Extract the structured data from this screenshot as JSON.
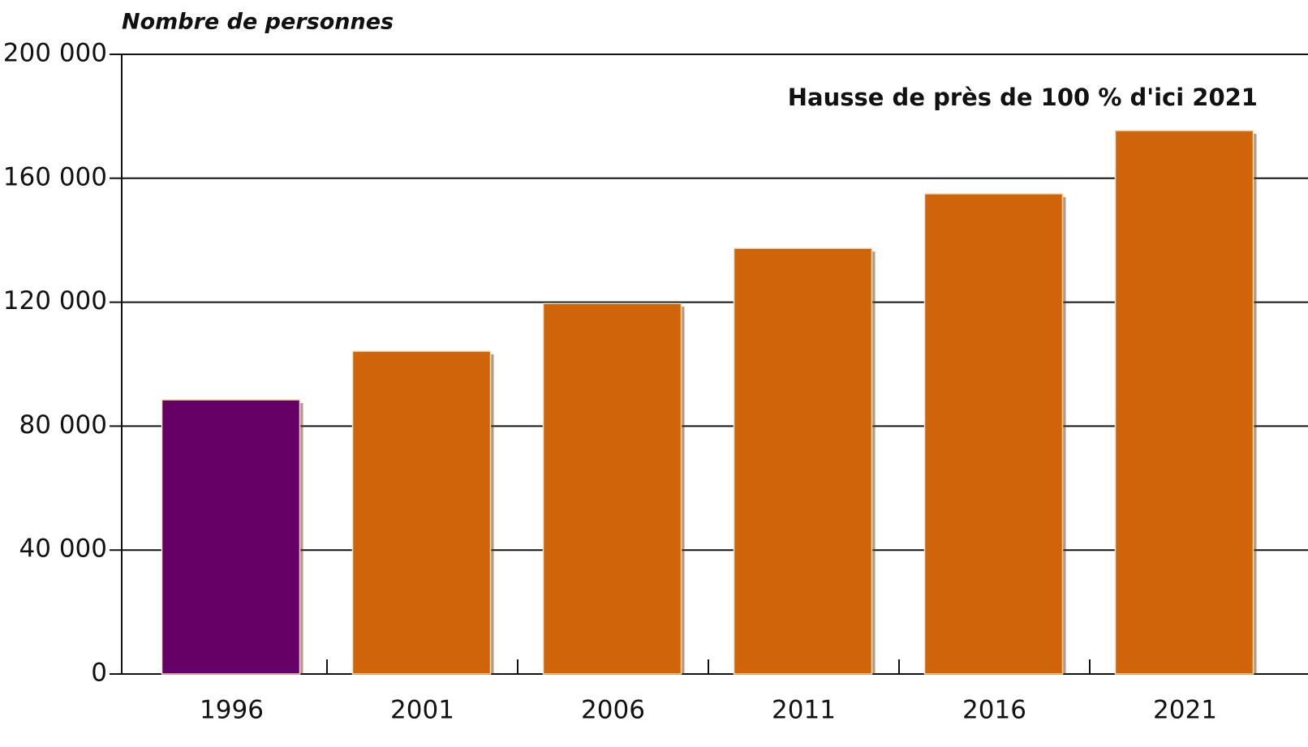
{
  "chart_data": {
    "type": "bar",
    "y_label": "Nombre de personnes",
    "annotation": "Hausse de près de 100 % d'ici 2021",
    "categories": [
      "1996",
      "2001",
      "2006",
      "2011",
      "2016",
      "2021"
    ],
    "values": [
      88500,
      104200,
      119600,
      137400,
      155000,
      175400
    ],
    "colors": [
      "#660066",
      "#d0640a",
      "#d0640a",
      "#d0640a",
      "#d0640a",
      "#d0640a"
    ],
    "ylim": [
      0,
      200000
    ],
    "yticks": [
      0,
      {
        "value": 40000,
        "label": "40 000"
      },
      {
        "value": 80000,
        "label": "80 000"
      },
      {
        "value": 120000,
        "label": "120 000"
      },
      {
        "value": 160000,
        "label": "160 000"
      },
      {
        "value": 200000,
        "label": "200 000"
      }
    ],
    "grid": true
  }
}
